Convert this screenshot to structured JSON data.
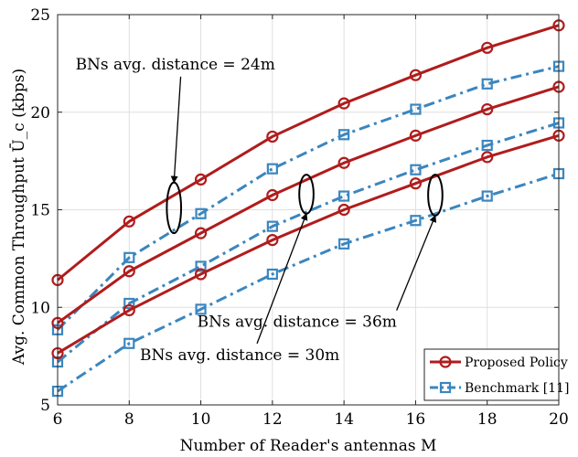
{
  "chart_data": {
    "type": "line",
    "xlabel": "Number of Reader's antennas M",
    "ylabel": "Avg. Common Throughput Ū_c (kbps)",
    "xlim": [
      6,
      20
    ],
    "ylim": [
      5,
      25
    ],
    "xticks": [
      "6",
      "8",
      "10",
      "12",
      "14",
      "16",
      "18",
      "20"
    ],
    "yticks": [
      "5",
      "10",
      "15",
      "20",
      "25"
    ],
    "grid": true,
    "legend_position": "bottom-right",
    "x": [
      6,
      8,
      10,
      12,
      14,
      16,
      18,
      20
    ],
    "series": [
      {
        "name": "Proposed Policy",
        "group": "24m",
        "style": "proposed",
        "values": [
          11.4,
          14.4,
          16.55,
          18.75,
          20.45,
          21.9,
          23.3,
          24.45
        ]
      },
      {
        "name": "Benchmark [11]",
        "group": "24m",
        "style": "benchmark",
        "values": [
          8.85,
          12.55,
          14.8,
          17.1,
          18.85,
          20.15,
          21.45,
          22.35
        ]
      },
      {
        "name": "Proposed Policy",
        "group": "30m",
        "style": "proposed",
        "values": [
          9.2,
          11.85,
          13.8,
          15.75,
          17.4,
          18.8,
          20.15,
          21.3
        ]
      },
      {
        "name": "Benchmark [11]",
        "group": "30m",
        "style": "benchmark",
        "values": [
          7.2,
          10.2,
          12.1,
          14.15,
          15.7,
          17.05,
          18.3,
          19.45
        ]
      },
      {
        "name": "Proposed Policy",
        "group": "36m",
        "style": "proposed",
        "values": [
          7.65,
          9.85,
          11.7,
          13.45,
          15.0,
          16.35,
          17.7,
          18.8
        ]
      },
      {
        "name": "Benchmark [11]",
        "group": "36m",
        "style": "benchmark",
        "values": [
          5.7,
          8.15,
          9.9,
          11.7,
          13.25,
          14.45,
          15.7,
          16.85
        ]
      }
    ],
    "annotations": [
      {
        "text": "BNs avg. distance = 24m",
        "anchor_x": 9.25,
        "anchor_y": 15.1,
        "rx_units": 0.2,
        "ry_units": 1.3,
        "label_x": 6.5,
        "label_y": 22.2
      },
      {
        "text": "BNs avg. distance = 30m",
        "anchor_x": 12.95,
        "anchor_y": 15.8,
        "rx_units": 0.2,
        "ry_units": 1.0,
        "label_x": 8.3,
        "label_y": 7.3
      },
      {
        "text": "BNs avg. distance = 36m",
        "anchor_x": 16.55,
        "anchor_y": 15.75,
        "rx_units": 0.2,
        "ry_units": 1.05,
        "label_x": 9.9,
        "label_y": 9.0
      }
    ],
    "legend": [
      "Proposed Policy",
      "Benchmark [11]"
    ],
    "colors": {
      "proposed": "#b01c1c",
      "benchmark": "#3b86bf"
    }
  }
}
